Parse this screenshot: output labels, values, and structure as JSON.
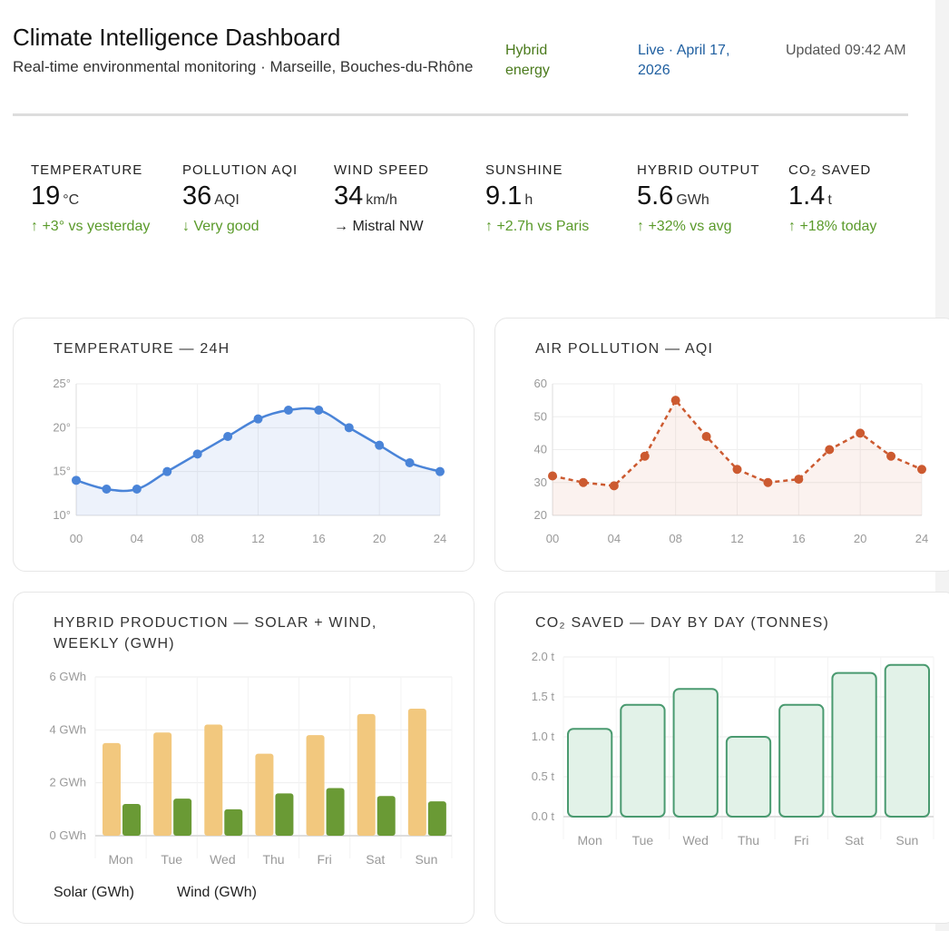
{
  "header": {
    "title": "Climate Intelligence Dashboard",
    "subtitle": "Real-time environmental monitoring · Marseille, Bouches-du-Rhône",
    "badge": "Hybrid energy",
    "live": "Live · April 17, 2026",
    "updated": "Updated 09:42 AM"
  },
  "stats": [
    {
      "label": "TEMPERATURE",
      "value": "19",
      "unit": "°C",
      "delta": "↑ +3° vs yesterday",
      "trend": "up"
    },
    {
      "label": "POLLUTION AQI",
      "value": "36",
      "unit": "AQI",
      "delta": "↓ Very good",
      "trend": "good"
    },
    {
      "label": "WIND SPEED",
      "value": "34",
      "unit": "km/h",
      "delta": "→ Mistral NW",
      "trend": "neutral"
    },
    {
      "label": "SUNSHINE",
      "value": "9.1",
      "unit": "h",
      "delta": "↑ +2.7h vs Paris",
      "trend": "up"
    },
    {
      "label": "HYBRID OUTPUT",
      "value": "5.6",
      "unit": "GWh",
      "delta": "↑ +32% vs avg",
      "trend": "up"
    },
    {
      "label": "CO₂ SAVED",
      "value": "1.4",
      "unit": "t",
      "delta": "↑ +18% today",
      "trend": "up"
    }
  ],
  "colors": {
    "temp": "#4a84d8",
    "aqi": "#cc5a30",
    "solar": "#f2c87e",
    "wind": "#6a9a35",
    "co2": "#4a9a70",
    "positive": "#5a9a2a",
    "live": "#1f5fa0"
  },
  "chart_data": [
    {
      "type": "line",
      "title": "TEMPERATURE — 24H",
      "x": [
        "00",
        "02",
        "04",
        "06",
        "08",
        "10",
        "12",
        "14",
        "16",
        "18",
        "20",
        "22",
        "24"
      ],
      "xticks": [
        "00",
        "04",
        "08",
        "12",
        "16",
        "20",
        "24"
      ],
      "yticks": [
        "10°",
        "15°",
        "20°",
        "25°"
      ],
      "ylim": [
        10,
        25
      ],
      "values": [
        14,
        13,
        13,
        15,
        17,
        19,
        21,
        22,
        22,
        20,
        18,
        16,
        15
      ],
      "smooth": true,
      "fill": true
    },
    {
      "type": "line",
      "title": "AIR POLLUTION — AQI",
      "x": [
        "00",
        "02",
        "04",
        "06",
        "08",
        "10",
        "12",
        "14",
        "16",
        "18",
        "20",
        "22",
        "24"
      ],
      "xticks": [
        "00",
        "04",
        "08",
        "12",
        "16",
        "20",
        "24"
      ],
      "yticks": [
        "20",
        "30",
        "40",
        "50",
        "60"
      ],
      "ylim": [
        20,
        60
      ],
      "values": [
        32,
        30,
        29,
        38,
        55,
        44,
        34,
        30,
        31,
        40,
        45,
        38,
        34
      ],
      "dashed": true,
      "fill": true
    },
    {
      "type": "bar",
      "title": "HYBRID PRODUCTION — SOLAR + WIND, WEEKLY (GWH)",
      "categories": [
        "Mon",
        "Tue",
        "Wed",
        "Thu",
        "Fri",
        "Sat",
        "Sun"
      ],
      "yticks": [
        "0 GWh",
        "2 GWh",
        "4 GWh",
        "6 GWh"
      ],
      "ylim": [
        0,
        6
      ],
      "series": [
        {
          "name": "Solar (GWh)",
          "values": [
            3.5,
            3.9,
            4.2,
            3.1,
            3.8,
            4.6,
            4.8
          ]
        },
        {
          "name": "Wind (GWh)",
          "values": [
            1.2,
            1.4,
            1.0,
            1.6,
            1.8,
            1.5,
            1.3
          ]
        }
      ],
      "legend": "bottom-left"
    },
    {
      "type": "bar",
      "title": "CO₂ SAVED — DAY BY DAY (TONNES)",
      "categories": [
        "Mon",
        "Tue",
        "Wed",
        "Thu",
        "Fri",
        "Sat",
        "Sun"
      ],
      "yticks": [
        "0.0 t",
        "0.5 t",
        "1.0 t",
        "1.5 t",
        "2.0 t"
      ],
      "ylim": [
        0,
        2
      ],
      "values": [
        1.1,
        1.4,
        1.6,
        1.0,
        1.4,
        1.8,
        1.9
      ]
    }
  ]
}
